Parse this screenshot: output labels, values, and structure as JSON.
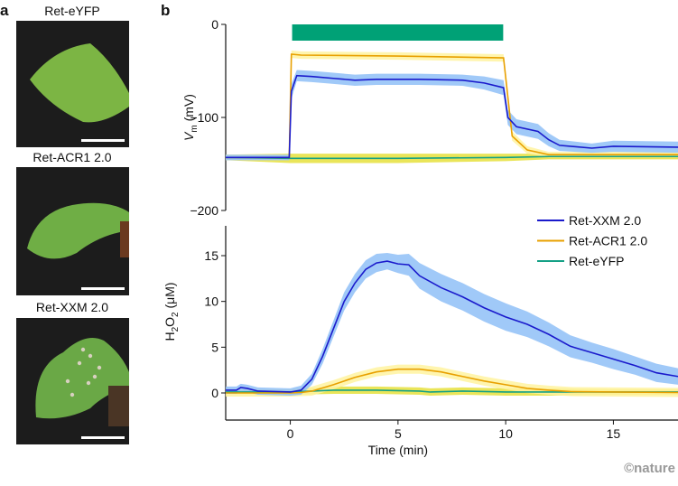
{
  "figure": {
    "panel_a_label": "a",
    "panel_b_label": "b",
    "photos": [
      {
        "label": "Ret-eYFP",
        "spots": false
      },
      {
        "label": "Ret-ACR1 2.0",
        "spots": false
      },
      {
        "label": "Ret-XXM 2.0",
        "spots": true
      }
    ],
    "watermark": "©nature"
  },
  "chart_data": [
    {
      "type": "line",
      "xlabel": "Time (min)",
      "ylabel_main": "V",
      "ylabel_sub": "m",
      "ylabel_unit": " (mV)",
      "xlim": [
        -3,
        18
      ],
      "ylim": [
        -200,
        0
      ],
      "yticks": [
        0,
        -100,
        -200
      ],
      "ytick_labels": [
        "0",
        "−100",
        "−200"
      ],
      "stimulus_bar": {
        "start": 0,
        "end": 9.8,
        "color": "#00a176"
      },
      "legend": {
        "placement": "bottom-right",
        "entries": [
          "Ret-XXM 2.0",
          "Ret-ACR1 2.0",
          "Ret-eYFP"
        ]
      },
      "series": [
        {
          "name": "Ret-XXM 2.0",
          "color": "#1a1acc",
          "band_color": "#8fbff7",
          "x": [
            -3,
            -0.05,
            0.05,
            0.3,
            1,
            2,
            3,
            4,
            6,
            8,
            9,
            9.9,
            10.1,
            10.5,
            11.5,
            12,
            12.5,
            14,
            15,
            18
          ],
          "y": [
            -143,
            -143,
            -72,
            -55,
            -56,
            -58,
            -60,
            -59,
            -59,
            -60,
            -63,
            -68,
            -100,
            -110,
            -115,
            -124,
            -130,
            -133,
            -131,
            -132
          ],
          "sd": [
            3,
            3,
            8,
            6,
            6,
            6,
            6,
            6,
            6,
            6,
            7,
            8,
            8,
            8,
            8,
            7,
            6,
            5,
            6,
            6
          ]
        },
        {
          "name": "Ret-ACR1 2.0",
          "color": "#e8a000",
          "band_color": "#fff3a0",
          "x": [
            -3,
            -0.05,
            0.05,
            0.5,
            5,
            9.9,
            10.3,
            11,
            12,
            18
          ],
          "y": [
            -143,
            -143,
            -32,
            -33,
            -34,
            -36,
            -120,
            -135,
            -140,
            -140
          ],
          "sd": [
            3,
            3,
            4,
            4,
            4,
            4,
            5,
            4,
            3,
            3
          ]
        },
        {
          "name": "Ret-eYFP",
          "color": "#14a085",
          "band_color": "#e6e03c",
          "x": [
            -3,
            0,
            5,
            10,
            12,
            18
          ],
          "y": [
            -143,
            -144,
            -144,
            -143,
            -142,
            -142
          ],
          "sd": [
            3,
            5,
            5,
            4,
            3,
            3
          ]
        }
      ]
    },
    {
      "type": "line",
      "xlabel": "Time (min)",
      "ylabel": "H2O2 (μM)",
      "ylabel_parts": [
        "H",
        "2",
        "O",
        "2",
        " (μM)"
      ],
      "xlim": [
        -3,
        18
      ],
      "ylim": [
        -3,
        18
      ],
      "xticks": [
        0,
        5,
        10,
        15
      ],
      "xtick_labels": [
        "0",
        "5",
        "10",
        "15"
      ],
      "yticks": [
        0,
        5,
        10,
        15
      ],
      "ytick_labels": [
        "0",
        "5",
        "10",
        "15"
      ],
      "series": [
        {
          "name": "Ret-XXM 2.0",
          "color": "#1a1acc",
          "band_color": "#8fbff7",
          "x": [
            -3,
            -2.5,
            -2.3,
            -2,
            -1.5,
            0,
            0.5,
            1,
            1.5,
            2,
            2.5,
            3,
            3.5,
            4,
            4.5,
            5,
            5.5,
            6,
            7,
            8,
            9,
            10,
            11,
            12,
            13,
            14,
            15,
            16,
            17,
            18
          ],
          "y": [
            0.3,
            0.3,
            0.6,
            0.5,
            0.2,
            0.1,
            0.3,
            1.5,
            4,
            7,
            10,
            12,
            13.5,
            14.2,
            14.4,
            14.1,
            14,
            12.8,
            11.5,
            10.5,
            9.3,
            8.3,
            7.5,
            6.4,
            5.1,
            4.4,
            3.7,
            3,
            2.2,
            1.8
          ],
          "sd": [
            0.4,
            0.4,
            0.4,
            0.4,
            0.4,
            0.4,
            0.5,
            0.6,
            0.8,
            0.9,
            1,
            1,
            1,
            1,
            0.9,
            1,
            1.2,
            1.4,
            1.5,
            1.5,
            1.5,
            1.5,
            1.4,
            1.3,
            1.2,
            1.1,
            1.1,
            1,
            1,
            0.9
          ]
        },
        {
          "name": "Ret-ACR1 2.0",
          "color": "#e8a000",
          "band_color": "#fff3a0",
          "x": [
            -3,
            0,
            0.5,
            1,
            2,
            3,
            4,
            5,
            6,
            7,
            8,
            9,
            10,
            11,
            12,
            13,
            15,
            18
          ],
          "y": [
            0,
            0,
            0.05,
            0.2,
            0.9,
            1.7,
            2.3,
            2.6,
            2.6,
            2.3,
            1.8,
            1.3,
            0.9,
            0.5,
            0.3,
            0.15,
            0.1,
            0.05
          ],
          "sd": [
            0.4,
            0.4,
            0.4,
            0.5,
            0.5,
            0.5,
            0.5,
            0.5,
            0.5,
            0.5,
            0.5,
            0.5,
            0.5,
            0.5,
            0.5,
            0.5,
            0.5,
            0.5
          ]
        },
        {
          "name": "Ret-eYFP",
          "color": "#14a085",
          "band_color": "#e6e03c",
          "x": [
            -3,
            0,
            2,
            4,
            6,
            6.5,
            8,
            10,
            12,
            15,
            18
          ],
          "y": [
            0.1,
            0.1,
            0.3,
            0.3,
            0.2,
            0.1,
            0.2,
            0.1,
            0.1,
            0.1,
            0.1
          ],
          "sd": [
            0.2,
            0.3,
            0.4,
            0.4,
            0.4,
            0.4,
            0.4,
            0.4,
            0.4,
            0.3,
            0.3
          ]
        }
      ]
    }
  ]
}
